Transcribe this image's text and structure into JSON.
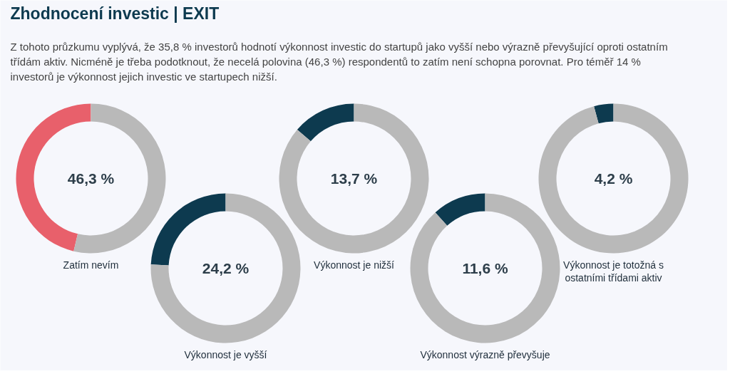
{
  "chart_data": [
    {
      "type": "donut",
      "title": "Zhodnocení investic | EXIT",
      "subtitle": "Z tohoto průzkumu vyplývá, že 35,8 % investorů hodnotí výkonnost investic do startupů jako vyšší nebo výrazně převyšující oproti ostatním třídám aktiv. Nicméně je třeba podotknout, že necelá polovina (46,3 %) respondentů to zatím není schopna porovnat. Pro téměř 14 % investorů je výkonnost jejich investic ve startupech nižší.",
      "xlabel": "Zatím nevím",
      "categories": [
        null,
        null
      ],
      "values": [
        46.3,
        53.7
      ],
      "colors": [
        "#e8606b",
        "#b9b9b9"
      ],
      "annotations": [
        "46,3 %"
      ]
    },
    {
      "type": "donut",
      "xlabel": "Výkonnost je vyšší",
      "categories": [
        null,
        null
      ],
      "values": [
        24.2,
        75.8
      ],
      "colors": [
        "#0d3a4f",
        "#b9b9b9"
      ],
      "annotations": [
        "24,2 %"
      ]
    },
    {
      "type": "donut",
      "xlabel": "Výkonnost je nižší",
      "categories": [
        null,
        null
      ],
      "values": [
        13.7,
        86.3
      ],
      "colors": [
        "#0d3a4f",
        "#b9b9b9"
      ],
      "annotations": [
        "13,7 %"
      ]
    },
    {
      "type": "donut",
      "xlabel": "Výkonnost výrazně převyšuje",
      "categories": [
        null,
        null
      ],
      "values": [
        11.6,
        88.4
      ],
      "colors": [
        "#0d3a4f",
        "#b9b9b9"
      ],
      "annotations": [
        "11,6 %"
      ]
    },
    {
      "type": "donut",
      "xlabel": "Výkonnost je totožná s ostatními třídami aktiv",
      "categories": [
        null,
        null
      ],
      "values": [
        4.2,
        95.8
      ],
      "colors": [
        "#0d3a4f",
        "#b9b9b9"
      ],
      "annotations": [
        "4,2 %"
      ]
    }
  ]
}
